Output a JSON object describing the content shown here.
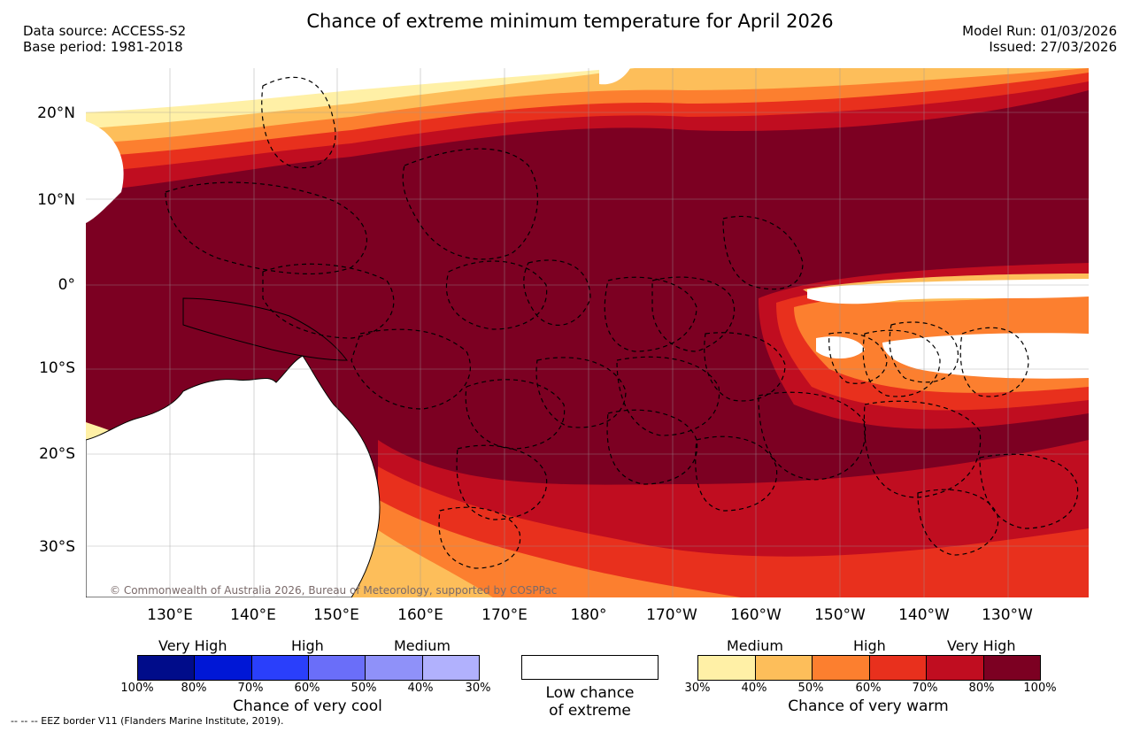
{
  "header": {
    "title": "Chance of extreme minimum temperature for April 2026",
    "data_source": "Data source: ACCESS-S2",
    "base_period": "Base period: 1981-2018",
    "model_run": "Model Run: 01/03/2026",
    "issued": "Issued: 27/03/2026"
  },
  "map": {
    "lat_labels": [
      "20°N",
      "10°N",
      "0°",
      "10°S",
      "20°S",
      "30°S"
    ],
    "lon_labels": [
      "130°E",
      "140°E",
      "150°E",
      "160°E",
      "170°E",
      "180°",
      "170°W",
      "160°W",
      "150°W",
      "140°W",
      "130°W"
    ],
    "copyright": "© Commonwealth of Australia 2026, Bureau of Meteorology, supported by COSPPac",
    "colors": {
      "land": "#ffffff",
      "warm_30": "#fff0a6",
      "warm_40": "#fdbe5a",
      "warm_50": "#fc7f2f",
      "warm_60": "#e8301d",
      "warm_70": "#c00d20",
      "warm_80": "#7c0022"
    }
  },
  "legend": {
    "cool": {
      "categories": [
        "Very High",
        "High",
        "Medium"
      ],
      "percent_ticks": [
        "100%",
        "80%",
        "70%",
        "60%",
        "50%",
        "40%",
        "30%"
      ],
      "colors": [
        "#000c8a",
        "#0017d6",
        "#2a3ffb",
        "#6a6ef9",
        "#8f91f9",
        "#b1b1fd"
      ],
      "caption": "Chance of very cool"
    },
    "neutral": {
      "label_line1": "Low chance",
      "label_line2": "of extreme"
    },
    "warm": {
      "categories": [
        "Medium",
        "High",
        "Very High"
      ],
      "percent_ticks": [
        "30%",
        "40%",
        "50%",
        "60%",
        "70%",
        "80%",
        "100%"
      ],
      "colors": [
        "#fff0a6",
        "#fdbe5a",
        "#fc7f2f",
        "#e8301d",
        "#c00d20",
        "#7c0022"
      ],
      "caption": "Chance of very warm"
    }
  },
  "footnote": "-- -- -- EEZ border V11 (Flanders Marine Institute, 2019)."
}
